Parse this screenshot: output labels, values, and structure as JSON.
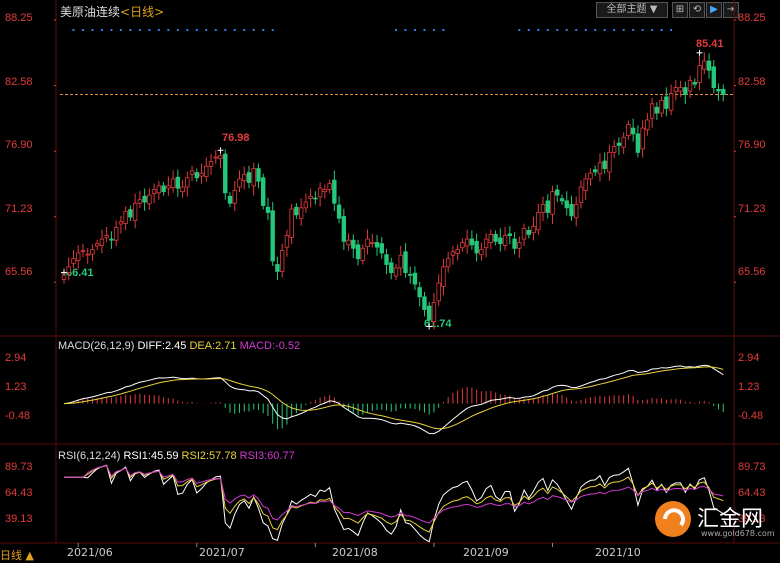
{
  "header": {
    "symbol": "美原油连续",
    "timeframe": "<日线>",
    "theme_button": "全部主题",
    "theme_arrow": "▼",
    "tool_icons": [
      "split-icon",
      "refresh-icon",
      "play-icon",
      "next-icon"
    ]
  },
  "colors": {
    "up": "#e23b3b",
    "down": "#25c87a",
    "diff": "#ffffff",
    "dea": "#e8d23a",
    "macd": "#d339d0",
    "rsi1": "#ffffff",
    "rsi2": "#e8d23a",
    "rsi3": "#d339d0",
    "grid": "#5a0d0d",
    "marker": "#2f7de0"
  },
  "price": {
    "y_ticks": [
      "88.25",
      "82.58",
      "76.90",
      "71.23",
      "65.56"
    ],
    "last_price_line": 81.8,
    "annotations": [
      {
        "label": "76.98",
        "value": 76.98,
        "index": 33,
        "kind": "high"
      },
      {
        "label": "66.41",
        "value": 66.41,
        "index": 0,
        "kind": "low"
      },
      {
        "label": "61.74",
        "value": 61.74,
        "index": 77,
        "kind": "low"
      },
      {
        "label": "85.41",
        "value": 85.41,
        "index": 134,
        "kind": "high"
      }
    ]
  },
  "macd": {
    "label": "MACD(26,12,9)",
    "diff": "DIFF:2.45",
    "dea": "DEA:2.71",
    "macd": "MACD:-0.52",
    "y_ticks": [
      "2.94",
      "1.23",
      "-0.48"
    ]
  },
  "rsi": {
    "label": "RSI(6,12,24)",
    "rsi1": "RSI1:45.59",
    "rsi2": "RSI2:57.78",
    "rsi3": "RSI3:60.77",
    "y_ticks": [
      "89.73",
      "64.43",
      "39.13"
    ]
  },
  "x_axis": {
    "labels": [
      "2021/06",
      "2021/07",
      "2021/08",
      "2021/09",
      "2021/10"
    ],
    "label_index": [
      3,
      28,
      53,
      78,
      103
    ]
  },
  "footer": {
    "period": "日线",
    "period_arrow": "▲"
  },
  "watermark": {
    "brand": "汇金网",
    "url": "www.gold678.com"
  },
  "chart_data": {
    "type": "candlestick",
    "title": "美原油连续<日线>",
    "ylim": [
      61.0,
      88.25
    ],
    "closes": [
      66.41,
      66.9,
      67.6,
      68.1,
      68.3,
      68.0,
      68.4,
      68.9,
      69.3,
      69.6,
      69.2,
      70.3,
      70.8,
      71.7,
      71.2,
      72.4,
      72.7,
      72.5,
      73.1,
      73.6,
      73.9,
      73.4,
      73.9,
      74.5,
      73.7,
      73.8,
      74.6,
      75.2,
      74.6,
      75.0,
      75.6,
      76.0,
      76.4,
      76.5,
      73.3,
      72.4,
      73.5,
      74.5,
      74.9,
      74.2,
      75.4,
      74.3,
      72.2,
      71.6,
      67.4,
      66.5,
      68.3,
      69.6,
      71.9,
      71.4,
      72.0,
      72.5,
      73.0,
      72.8,
      73.7,
      73.6,
      74.1,
      72.4,
      71.1,
      69.1,
      69.2,
      68.5,
      67.6,
      68.5,
      69.3,
      69.0,
      68.6,
      68.1,
      67.1,
      66.4,
      66.8,
      67.9,
      66.4,
      66.2,
      65.4,
      64.3,
      63.2,
      62.3,
      63.8,
      65.5,
      66.9,
      67.6,
      68.2,
      68.4,
      69.0,
      69.3,
      68.8,
      68.1,
      68.4,
      69.3,
      69.7,
      69.1,
      68.9,
      69.6,
      69.6,
      68.5,
      69.0,
      70.2,
      69.7,
      70.4,
      71.6,
      72.3,
      71.6,
      73.4,
      73.1,
      72.6,
      72.0,
      71.3,
      72.3,
      73.8,
      74.5,
      75.0,
      75.1,
      75.9,
      75.4,
      76.8,
      77.3,
      77.4,
      78.1,
      79.2,
      78.4,
      76.8,
      78.9,
      79.6,
      81.0,
      80.2,
      81.3,
      80.6,
      81.9,
      82.4,
      82.4,
      81.8,
      83.0,
      82.7,
      84.3,
      84.7,
      83.9,
      82.4,
      82.1,
      81.8
    ]
  }
}
